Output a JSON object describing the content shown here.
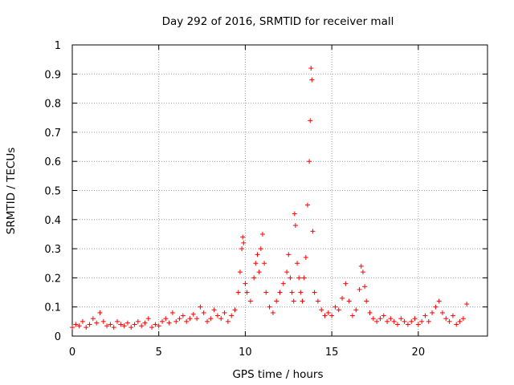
{
  "chart_data": {
    "type": "scatter",
    "title": "Day 292 of 2016, SRMTID for receiver mall",
    "xlabel": "GPS time / hours",
    "ylabel": "SRMTID / TECUs",
    "xlim": [
      0,
      24
    ],
    "ylim": [
      0,
      1
    ],
    "xticks": [
      0,
      5,
      10,
      15,
      20
    ],
    "xtick_labels": [
      "0",
      "5",
      "10",
      "15",
      "20"
    ],
    "yticks": [
      0,
      0.1,
      0.2,
      0.3,
      0.4,
      0.5,
      0.6,
      0.7,
      0.8,
      0.9,
      1
    ],
    "ytick_labels": [
      "0",
      "0.1",
      "0.2",
      "0.3",
      "0.4",
      "0.5",
      "0.6",
      "0.7",
      "0.8",
      "0.9",
      "1"
    ],
    "grid": true,
    "marker": "+",
    "color": "#ff0000",
    "series": [
      {
        "name": "SRMTID",
        "points": [
          [
            0.0,
            0.03
          ],
          [
            0.2,
            0.04
          ],
          [
            0.4,
            0.035
          ],
          [
            0.6,
            0.05
          ],
          [
            0.8,
            0.03
          ],
          [
            1.0,
            0.04
          ],
          [
            1.2,
            0.06
          ],
          [
            1.4,
            0.045
          ],
          [
            1.6,
            0.08
          ],
          [
            1.8,
            0.05
          ],
          [
            2.0,
            0.035
          ],
          [
            2.2,
            0.04
          ],
          [
            2.4,
            0.03
          ],
          [
            2.6,
            0.05
          ],
          [
            2.8,
            0.04
          ],
          [
            3.0,
            0.035
          ],
          [
            3.2,
            0.045
          ],
          [
            3.4,
            0.03
          ],
          [
            3.6,
            0.04
          ],
          [
            3.8,
            0.05
          ],
          [
            4.0,
            0.035
          ],
          [
            4.2,
            0.045
          ],
          [
            4.4,
            0.06
          ],
          [
            4.6,
            0.03
          ],
          [
            4.8,
            0.04
          ],
          [
            5.0,
            0.035
          ],
          [
            5.2,
            0.05
          ],
          [
            5.4,
            0.06
          ],
          [
            5.6,
            0.045
          ],
          [
            5.8,
            0.08
          ],
          [
            6.0,
            0.05
          ],
          [
            6.2,
            0.06
          ],
          [
            6.4,
            0.07
          ],
          [
            6.6,
            0.05
          ],
          [
            6.8,
            0.06
          ],
          [
            7.0,
            0.075
          ],
          [
            7.2,
            0.06
          ],
          [
            7.4,
            0.1
          ],
          [
            7.6,
            0.08
          ],
          [
            7.8,
            0.05
          ],
          [
            8.0,
            0.06
          ],
          [
            8.2,
            0.09
          ],
          [
            8.4,
            0.07
          ],
          [
            8.6,
            0.06
          ],
          [
            8.8,
            0.08
          ],
          [
            9.0,
            0.05
          ],
          [
            9.2,
            0.07
          ],
          [
            9.4,
            0.09
          ],
          [
            9.6,
            0.15
          ],
          [
            9.7,
            0.22
          ],
          [
            9.8,
            0.3
          ],
          [
            9.85,
            0.34
          ],
          [
            9.9,
            0.32
          ],
          [
            10.0,
            0.18
          ],
          [
            10.1,
            0.15
          ],
          [
            10.3,
            0.12
          ],
          [
            10.5,
            0.2
          ],
          [
            10.6,
            0.25
          ],
          [
            10.7,
            0.28
          ],
          [
            10.8,
            0.22
          ],
          [
            10.9,
            0.3
          ],
          [
            11.0,
            0.35
          ],
          [
            11.1,
            0.25
          ],
          [
            11.2,
            0.15
          ],
          [
            11.4,
            0.1
          ],
          [
            11.6,
            0.08
          ],
          [
            11.8,
            0.12
          ],
          [
            12.0,
            0.15
          ],
          [
            12.2,
            0.18
          ],
          [
            12.4,
            0.22
          ],
          [
            12.5,
            0.28
          ],
          [
            12.6,
            0.2
          ],
          [
            12.7,
            0.15
          ],
          [
            12.8,
            0.12
          ],
          [
            12.85,
            0.42
          ],
          [
            12.9,
            0.38
          ],
          [
            13.0,
            0.25
          ],
          [
            13.1,
            0.2
          ],
          [
            13.2,
            0.15
          ],
          [
            13.3,
            0.12
          ],
          [
            13.4,
            0.2
          ],
          [
            13.5,
            0.27
          ],
          [
            13.6,
            0.45
          ],
          [
            13.7,
            0.6
          ],
          [
            13.75,
            0.74
          ],
          [
            13.8,
            0.92
          ],
          [
            13.85,
            0.88
          ],
          [
            13.9,
            0.36
          ],
          [
            14.0,
            0.15
          ],
          [
            14.2,
            0.12
          ],
          [
            14.4,
            0.09
          ],
          [
            14.6,
            0.07
          ],
          [
            14.8,
            0.08
          ],
          [
            15.0,
            0.07
          ],
          [
            15.2,
            0.1
          ],
          [
            15.4,
            0.09
          ],
          [
            15.6,
            0.13
          ],
          [
            15.8,
            0.18
          ],
          [
            16.0,
            0.12
          ],
          [
            16.2,
            0.07
          ],
          [
            16.4,
            0.09
          ],
          [
            16.6,
            0.16
          ],
          [
            16.7,
            0.24
          ],
          [
            16.8,
            0.22
          ],
          [
            16.9,
            0.17
          ],
          [
            17.0,
            0.12
          ],
          [
            17.2,
            0.08
          ],
          [
            17.4,
            0.06
          ],
          [
            17.6,
            0.05
          ],
          [
            17.8,
            0.06
          ],
          [
            18.0,
            0.07
          ],
          [
            18.2,
            0.05
          ],
          [
            18.4,
            0.06
          ],
          [
            18.6,
            0.05
          ],
          [
            18.8,
            0.04
          ],
          [
            19.0,
            0.06
          ],
          [
            19.2,
            0.05
          ],
          [
            19.4,
            0.04
          ],
          [
            19.6,
            0.05
          ],
          [
            19.8,
            0.06
          ],
          [
            20.0,
            0.04
          ],
          [
            20.2,
            0.05
          ],
          [
            20.4,
            0.07
          ],
          [
            20.6,
            0.05
          ],
          [
            20.8,
            0.08
          ],
          [
            21.0,
            0.1
          ],
          [
            21.2,
            0.12
          ],
          [
            21.4,
            0.08
          ],
          [
            21.6,
            0.06
          ],
          [
            21.8,
            0.05
          ],
          [
            22.0,
            0.07
          ],
          [
            22.2,
            0.04
          ],
          [
            22.4,
            0.05
          ],
          [
            22.6,
            0.06
          ],
          [
            22.8,
            0.11
          ]
        ]
      }
    ]
  }
}
